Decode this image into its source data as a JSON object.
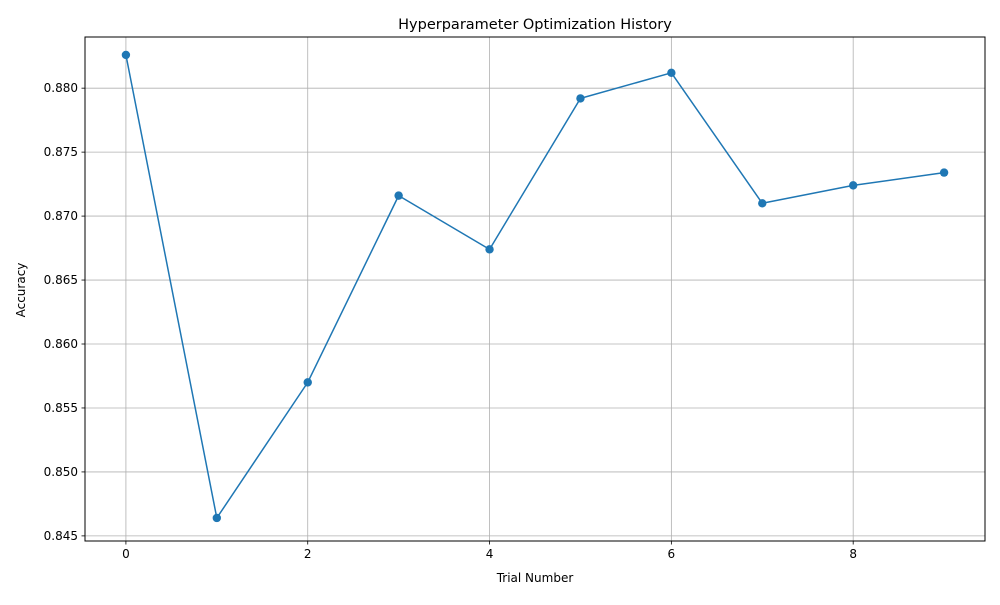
{
  "chart_data": {
    "type": "line",
    "title": "Hyperparameter Optimization History",
    "xlabel": "Trial Number",
    "ylabel": "Accuracy",
    "x": [
      0,
      1,
      2,
      3,
      4,
      5,
      6,
      7,
      8,
      9
    ],
    "series": [
      {
        "values": [
          0.8826,
          0.8464,
          0.857,
          0.8716,
          0.8674,
          0.8792,
          0.8812,
          0.871,
          0.8724,
          0.8734
        ],
        "color": "#1f77b4",
        "marker": "circle"
      }
    ],
    "xlim": [
      -0.45,
      9.45
    ],
    "ylim": [
      0.8446,
      0.884
    ],
    "xticks": [
      0,
      2,
      4,
      6,
      8
    ],
    "xtick_labels": [
      "0",
      "2",
      "4",
      "6",
      "8"
    ],
    "yticks": [
      0.845,
      0.85,
      0.855,
      0.86,
      0.865,
      0.87,
      0.875,
      0.88
    ],
    "ytick_labels": [
      "0.845",
      "0.850",
      "0.855",
      "0.860",
      "0.865",
      "0.870",
      "0.875",
      "0.880"
    ],
    "grid": true,
    "legend": "none"
  }
}
